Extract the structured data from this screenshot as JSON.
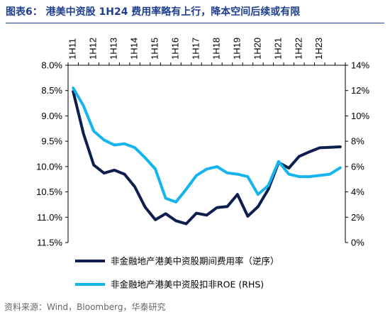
{
  "title": "图表6： 港美中资股 1H24 费用率略有上行，降本空间后续或有限",
  "source": "资料来源：Wind，Bloomberg，华泰研究",
  "colors": {
    "title": "#1f3f8f",
    "series1": "#0d1f4f",
    "series2": "#14b4ee"
  },
  "chart_data": {
    "type": "line",
    "x": [
      "1H11",
      "2H11",
      "1H12",
      "2H12",
      "1H13",
      "2H13",
      "1H14",
      "2H14",
      "1H15",
      "2H15",
      "1H16",
      "2H16",
      "1H17",
      "2H17",
      "1H18",
      "2H18",
      "1H19",
      "2H19",
      "1H20",
      "2H20",
      "1H21",
      "2H21",
      "1H22",
      "2H22",
      "1H23",
      "2H23",
      "1H24"
    ],
    "x_tick_labels": [
      "1H11",
      "1H12",
      "1H13",
      "1H14",
      "1H15",
      "1H16",
      "1H17",
      "1H18",
      "1H19",
      "1H20",
      "1H21",
      "1H22",
      "1H23"
    ],
    "y_left": {
      "ticks": [
        "8.0%",
        "8.5%",
        "9.0%",
        "9.5%",
        "10.0%",
        "10.5%",
        "11.0%",
        "11.5%"
      ],
      "range": [
        8.0,
        11.5
      ],
      "inverted": true
    },
    "y_right": {
      "ticks": [
        "14%",
        "12%",
        "10%",
        "8%",
        "6%",
        "4%",
        "2%",
        "0%"
      ],
      "range": [
        0,
        14
      ]
    },
    "series": [
      {
        "name": "非金融地产港美中资股期间费用率（逆序）",
        "axis": "left",
        "values": [
          8.52,
          9.35,
          9.97,
          10.13,
          10.07,
          10.15,
          10.4,
          10.8,
          11.05,
          10.93,
          11.07,
          11.13,
          10.92,
          10.96,
          10.81,
          10.79,
          10.55,
          10.98,
          10.79,
          10.45,
          9.92,
          10.03,
          9.8,
          9.71,
          9.63,
          9.62,
          9.61
        ]
      },
      {
        "name": "非金融地产港美中资股扣非ROE (RHS)",
        "axis": "right",
        "values": [
          12.2,
          10.8,
          8.8,
          8.1,
          7.7,
          7.8,
          7.5,
          6.7,
          5.8,
          3.5,
          3.2,
          4.2,
          5.3,
          5.8,
          6.0,
          5.5,
          5.4,
          5.2,
          3.8,
          4.5,
          6.4,
          5.4,
          5.2,
          5.2,
          5.3,
          5.4,
          5.9
        ]
      }
    ],
    "legend_position": "bottom"
  }
}
